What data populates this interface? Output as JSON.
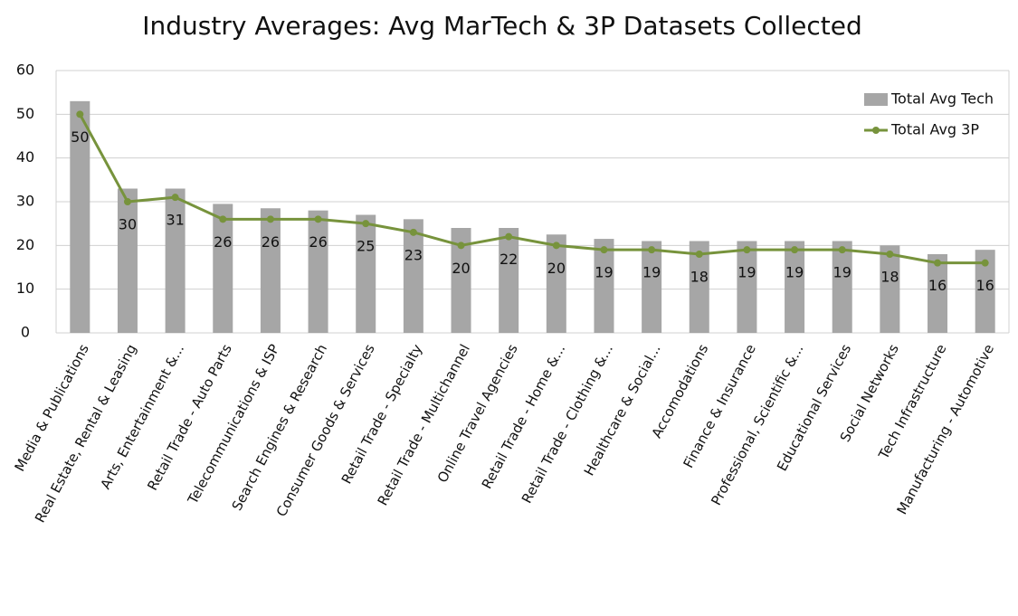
{
  "chart_data": {
    "type": "bar",
    "title": "Industry Averages: Avg MarTech & 3P Datasets Collected",
    "categories": [
      "Media & Publications",
      "Real Estate, Rental & Leasing",
      "Arts, Entertainment &...",
      "Retail Trade - Auto Parts",
      "Telecommunications & ISP",
      "Search Engines & Research",
      "Consumer Goods & Services",
      "Retail Trade - Specialty",
      "Retail Trade - Multichannel",
      "Online Travel Agencies",
      "Retail Trade - Home &...",
      "Retail Trade - Clothing &...",
      "Healthcare & Social...",
      "Accomodations",
      "Finance & Insurance",
      "Professional, Scientific &...",
      "Educational Services",
      "Social Networks",
      "Tech Infrastructure",
      "Manufacturing - Automotive"
    ],
    "series": [
      {
        "name": "Total Avg Tech",
        "type": "bar",
        "color": "#a6a6a6",
        "values": [
          53,
          33,
          33,
          29.5,
          28.5,
          28,
          27,
          26,
          24,
          24,
          22.5,
          21.5,
          21,
          21,
          21,
          21,
          21,
          20,
          18,
          19
        ]
      },
      {
        "name": "Total Avg 3P",
        "type": "line",
        "color": "#77933c",
        "values": [
          50,
          30,
          31,
          26,
          26,
          26,
          25,
          23,
          20,
          22,
          20,
          19,
          19,
          18,
          19,
          19,
          19,
          18,
          16,
          16
        ]
      }
    ],
    "ylim": [
      0,
      60
    ],
    "yticks": [
      0,
      10,
      20,
      30,
      40,
      50,
      60
    ],
    "grid": true,
    "legend": "upper right"
  }
}
